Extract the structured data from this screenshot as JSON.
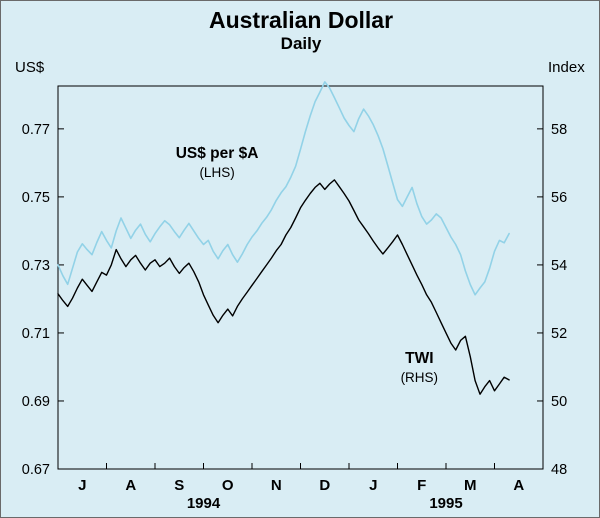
{
  "chart_data": {
    "type": "line",
    "title": "Australian Dollar",
    "subtitle": "Daily",
    "background_color": "#d9edf4",
    "grid": false,
    "axes": {
      "left": {
        "unit": "US$",
        "ticks": [
          0.77,
          0.75,
          0.73,
          0.71,
          0.69,
          0.67
        ],
        "min": 0.67,
        "max": 0.7826,
        "decimals": 2
      },
      "right": {
        "unit": "Index",
        "ticks": [
          58,
          56,
          54,
          52,
          50,
          48
        ],
        "min": 48,
        "max": 59.26,
        "decimals": 0
      },
      "x": {
        "month_labels": [
          "J",
          "A",
          "S",
          "O",
          "N",
          "D",
          "J",
          "F",
          "M",
          "A"
        ],
        "months_total": 10,
        "year_labels": [
          {
            "text": "1994",
            "center_month": 3
          },
          {
            "text": "1995",
            "center_month": 8
          }
        ]
      }
    },
    "annotations": [
      {
        "text": "US$ per $A",
        "sub": "(LHS)",
        "fx": 0.328,
        "fy": 0.175
      },
      {
        "text": "TWI",
        "sub": "(RHS)",
        "fx": 0.745,
        "fy": 0.71
      }
    ],
    "series": [
      {
        "name": "US$ per $A",
        "axis": "left",
        "color": "#92d2e7",
        "width": 1.6,
        "x_start": 0,
        "x_step": 0.1,
        "values": [
          0.73,
          0.7268,
          0.7243,
          0.729,
          0.7338,
          0.7362,
          0.7345,
          0.733,
          0.7366,
          0.7398,
          0.7372,
          0.735,
          0.74,
          0.7438,
          0.7408,
          0.7378,
          0.7402,
          0.742,
          0.739,
          0.7368,
          0.7392,
          0.7412,
          0.743,
          0.7418,
          0.7398,
          0.738,
          0.7402,
          0.7422,
          0.74,
          0.7378,
          0.736,
          0.7372,
          0.734,
          0.7318,
          0.7342,
          0.736,
          0.733,
          0.7308,
          0.7332,
          0.736,
          0.7382,
          0.74,
          0.7422,
          0.744,
          0.7462,
          0.749,
          0.7512,
          0.753,
          0.7558,
          0.759,
          0.764,
          0.7692,
          0.7738,
          0.778,
          0.7808,
          0.7838,
          0.782,
          0.7792,
          0.7762,
          0.7732,
          0.771,
          0.7692,
          0.773,
          0.7758,
          0.7738,
          0.7712,
          0.768,
          0.7642,
          0.7592,
          0.7542,
          0.7492,
          0.7472,
          0.75,
          0.7528,
          0.748,
          0.7442,
          0.742,
          0.7432,
          0.745,
          0.7438,
          0.741,
          0.7382,
          0.736,
          0.733,
          0.7282,
          0.7242,
          0.7212,
          0.7232,
          0.725,
          0.729,
          0.734,
          0.7372,
          0.7365,
          0.7392
        ]
      },
      {
        "name": "TWI",
        "axis": "right",
        "color": "#000000",
        "width": 1.4,
        "x_start": 0,
        "x_step": 0.1,
        "values": [
          53.15,
          52.95,
          52.78,
          53.02,
          53.32,
          53.58,
          53.4,
          53.22,
          53.5,
          53.78,
          53.7,
          54.0,
          54.45,
          54.18,
          53.95,
          54.15,
          54.28,
          54.05,
          53.85,
          54.05,
          54.15,
          53.95,
          54.05,
          54.2,
          53.95,
          53.75,
          53.92,
          54.05,
          53.8,
          53.5,
          53.12,
          52.82,
          52.52,
          52.3,
          52.52,
          52.7,
          52.5,
          52.78,
          53.0,
          53.2,
          53.4,
          53.6,
          53.8,
          54.0,
          54.2,
          54.42,
          54.6,
          54.88,
          55.1,
          55.38,
          55.68,
          55.9,
          56.1,
          56.28,
          56.4,
          56.22,
          56.38,
          56.5,
          56.3,
          56.1,
          55.88,
          55.6,
          55.32,
          55.12,
          54.92,
          54.7,
          54.5,
          54.32,
          54.5,
          54.68,
          54.88,
          54.6,
          54.3,
          54.0,
          53.7,
          53.42,
          53.12,
          52.9,
          52.6,
          52.3,
          52.0,
          51.7,
          51.5,
          51.78,
          51.9,
          51.3,
          50.6,
          50.2,
          50.42,
          50.6,
          50.3,
          50.5,
          50.7,
          50.62
        ]
      }
    ]
  }
}
